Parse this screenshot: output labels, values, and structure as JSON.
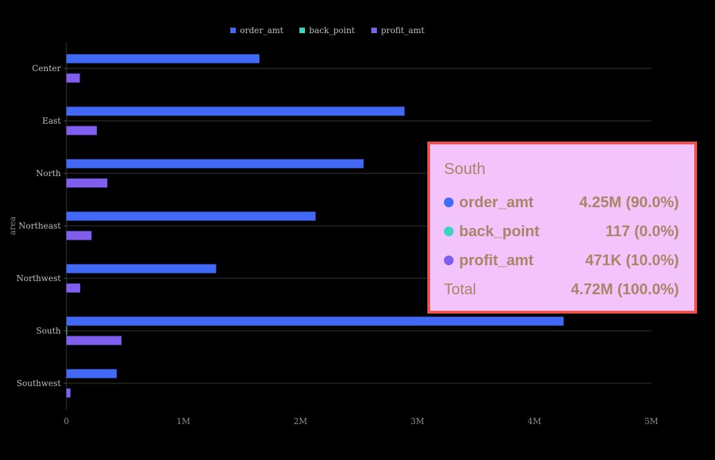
{
  "chart_data": {
    "type": "bar",
    "orientation": "horizontal",
    "ylabel": "area",
    "categories": [
      "Center",
      "East",
      "North",
      "Northeast",
      "Northwest",
      "South",
      "Southwest"
    ],
    "series": [
      {
        "name": "order_amt",
        "color": "#4269f5",
        "values": [
          1650000,
          2890000,
          2540000,
          2130000,
          1280000,
          4250000,
          430000
        ]
      },
      {
        "name": "back_point",
        "color": "#3cd3c0",
        "values": [
          0,
          0,
          0,
          0,
          0,
          117,
          0
        ]
      },
      {
        "name": "profit_amt",
        "color": "#7f5ef0",
        "values": [
          115000,
          260000,
          350000,
          215000,
          118000,
          471000,
          35000
        ]
      }
    ],
    "xlim": [
      0,
      5000000
    ],
    "xticks": [
      "0",
      "1M",
      "2M",
      "3M",
      "4M",
      "5M"
    ],
    "legend_position": "top",
    "grid": true
  },
  "tooltip": {
    "title": "South",
    "rows": [
      {
        "name": "order_amt",
        "value": "4.25M (90.0%)",
        "color": "#3d6df6"
      },
      {
        "name": "back_point",
        "value": "117 (0.0%)",
        "color": "#3cd3c0"
      },
      {
        "name": "profit_amt",
        "value": "471K (10.0%)",
        "color": "#7f5ef0"
      }
    ],
    "total_label": "Total",
    "total_value": "4.72M (100.0%)"
  }
}
